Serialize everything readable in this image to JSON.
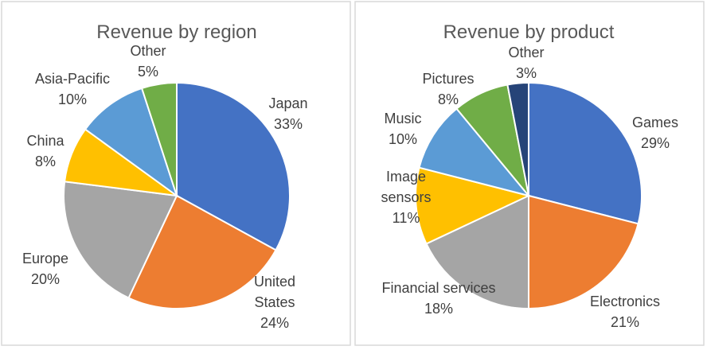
{
  "chart_data": [
    {
      "type": "pie",
      "title": "Revenue by region",
      "legend": "none",
      "slices": [
        {
          "name": "Japan",
          "value": 33,
          "label": "33%",
          "color": "#4472C4"
        },
        {
          "name": "United States",
          "value": 24,
          "label": "24%",
          "color": "#ED7D31"
        },
        {
          "name": "Europe",
          "value": 20,
          "label": "20%",
          "color": "#A5A5A5"
        },
        {
          "name": "China",
          "value": 8,
          "label": "8%",
          "color": "#FFC000"
        },
        {
          "name": "Asia-Pacific",
          "value": 10,
          "label": "10%",
          "color": "#5B9BD5"
        },
        {
          "name": "Other",
          "value": 5,
          "label": "5%",
          "color": "#70AD47"
        }
      ]
    },
    {
      "type": "pie",
      "title": "Revenue by product",
      "legend": "none",
      "slices": [
        {
          "name": "Games",
          "value": 29,
          "label": "29%",
          "color": "#4472C4"
        },
        {
          "name": "Electronics",
          "value": 21,
          "label": "21%",
          "color": "#ED7D31"
        },
        {
          "name": "Financial services",
          "value": 18,
          "label": "18%",
          "color": "#A5A5A5"
        },
        {
          "name": "Image sensors",
          "value": 11,
          "label": "11%",
          "color": "#FFC000"
        },
        {
          "name": "Music",
          "value": 10,
          "label": "10%",
          "color": "#5B9BD5"
        },
        {
          "name": "Pictures",
          "value": 8,
          "label": "8%",
          "color": "#70AD47"
        },
        {
          "name": "Other",
          "value": 3,
          "label": "3%",
          "color": "#264478"
        }
      ]
    }
  ]
}
